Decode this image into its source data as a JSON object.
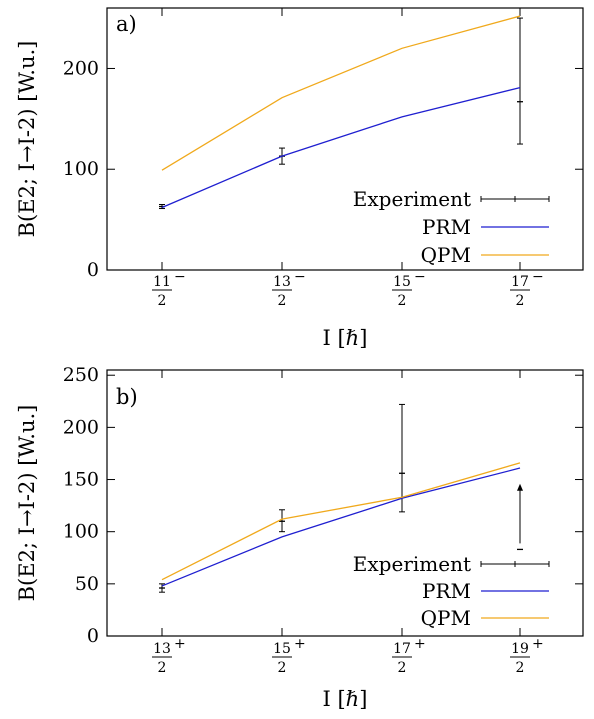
{
  "chart_data": [
    {
      "type": "line",
      "panel_label": "a)",
      "categories": [
        "11/2-",
        "13/2-",
        "15/2-",
        "17/2-"
      ],
      "x_ticks": [
        {
          "num": "11",
          "den": "2",
          "sup": "−"
        },
        {
          "num": "13",
          "den": "2",
          "sup": "−"
        },
        {
          "num": "15",
          "den": "2",
          "sup": "−"
        },
        {
          "num": "17",
          "den": "2",
          "sup": "−"
        }
      ],
      "ylim": [
        0,
        260
      ],
      "y_ticks": [
        0,
        100,
        200
      ],
      "xlabel": "I [ℏ]",
      "ylabel": "B(E2; I→I-2) [W.u.]",
      "legend_position": "bottom-right",
      "grid": false,
      "series": [
        {
          "name": "Experiment",
          "kind": "errorbar",
          "color": "#000000",
          "points": [
            {
              "i": 0,
              "y": 63,
              "lo": 61,
              "hi": 65
            },
            {
              "i": 1,
              "y": 113,
              "lo": 105,
              "hi": 121
            },
            {
              "i": 3,
              "y": 167,
              "lo": 125,
              "hi": 250
            }
          ]
        },
        {
          "name": "PRM",
          "kind": "line",
          "color": "#1f1fd0",
          "values": [
            62,
            113,
            152,
            181
          ]
        },
        {
          "name": "QPM",
          "kind": "line",
          "color": "#f0a91c",
          "values": [
            99,
            171,
            220,
            252
          ]
        }
      ]
    },
    {
      "type": "line",
      "panel_label": "b)",
      "categories": [
        "13/2+",
        "15/2+",
        "17/2+",
        "19/2+"
      ],
      "x_ticks": [
        {
          "num": "13",
          "den": "2",
          "sup": "+"
        },
        {
          "num": "15",
          "den": "2",
          "sup": "+"
        },
        {
          "num": "17",
          "den": "2",
          "sup": "+"
        },
        {
          "num": "19",
          "den": "2",
          "sup": "+"
        }
      ],
      "ylim": [
        0,
        255
      ],
      "y_ticks": [
        0,
        50,
        100,
        150,
        200,
        250
      ],
      "xlabel": "I [ℏ]",
      "ylabel": "B(E2; I→I-2) [W.u.]",
      "legend_position": "bottom-right",
      "grid": false,
      "series": [
        {
          "name": "Experiment",
          "kind": "errorbar",
          "color": "#000000",
          "points": [
            {
              "i": 0,
              "y": 46,
              "lo": 42,
              "hi": 50
            },
            {
              "i": 1,
              "y": 110,
              "lo": 100,
              "hi": 121
            },
            {
              "i": 2,
              "y": 156,
              "lo": 119,
              "hi": 222
            }
          ],
          "lower_limits": [
            {
              "i": 3,
              "y": 83,
              "arrow_to": 146
            }
          ]
        },
        {
          "name": "PRM",
          "kind": "line",
          "color": "#1f1fd0",
          "values": [
            48,
            95,
            132,
            161
          ]
        },
        {
          "name": "QPM",
          "kind": "line",
          "color": "#f0a91c",
          "values": [
            54,
            112,
            133,
            166
          ]
        }
      ]
    }
  ]
}
